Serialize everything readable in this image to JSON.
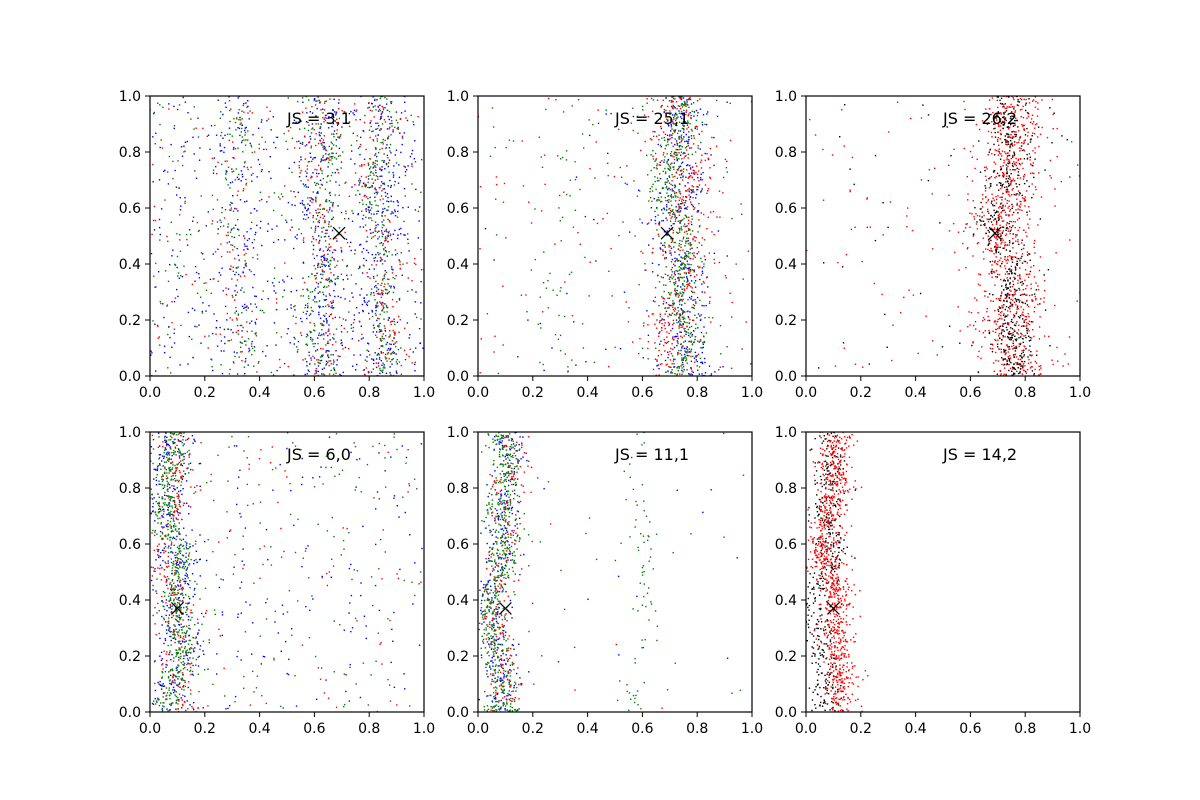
{
  "figure": {
    "background": "#ffffff",
    "colors": {
      "blue": "#0000ff",
      "red": "#ff0000",
      "green": "#007f00",
      "black": "#000000"
    }
  },
  "chart_data": [
    {
      "type": "scatter",
      "annotation": "JS = 3,1",
      "marker": {
        "x": 0.69,
        "y": 0.51,
        "symbol": "x"
      },
      "xlim": [
        0,
        1
      ],
      "ylim": [
        0,
        1
      ],
      "xticks": [
        "0.0",
        "0.2",
        "0.4",
        "0.6",
        "0.8",
        "1.0"
      ],
      "yticks": [
        "0.0",
        "0.2",
        "0.4",
        "0.6",
        "0.8",
        "1.0"
      ],
      "series": [
        {
          "color": "blue",
          "clusters": [
            {
              "center": 0.63,
              "width": 0.04,
              "n": 220
            },
            {
              "center": 0.84,
              "width": 0.04,
              "n": 240
            },
            {
              "center": 0.32,
              "width": 0.04,
              "n": 80
            }
          ],
          "background_n": 500
        },
        {
          "color": "red",
          "clusters": [
            {
              "center": 0.63,
              "width": 0.035,
              "n": 160
            },
            {
              "center": 0.84,
              "width": 0.035,
              "n": 170
            },
            {
              "center": 0.32,
              "width": 0.035,
              "n": 60
            }
          ],
          "background_n": 200
        },
        {
          "color": "green",
          "clusters": [
            {
              "center": 0.63,
              "width": 0.03,
              "n": 200
            },
            {
              "center": 0.84,
              "width": 0.03,
              "n": 210
            },
            {
              "center": 0.32,
              "width": 0.03,
              "n": 80
            }
          ],
          "background_n": 250
        }
      ]
    },
    {
      "type": "scatter",
      "annotation": "JS = 25,1",
      "marker": {
        "x": 0.69,
        "y": 0.51,
        "symbol": "x"
      },
      "xlim": [
        0,
        1
      ],
      "ylim": [
        0,
        1
      ],
      "xticks": [
        "0.0",
        "0.2",
        "0.4",
        "0.6",
        "0.8",
        "1.0"
      ],
      "yticks": [
        "0.0",
        "0.2",
        "0.4",
        "0.6",
        "0.8",
        "1.0"
      ],
      "series": [
        {
          "color": "blue",
          "clusters": [
            {
              "center": 0.74,
              "width": 0.05,
              "n": 420
            }
          ],
          "background_n": 40
        },
        {
          "color": "red",
          "clusters": [
            {
              "center": 0.74,
              "width": 0.055,
              "n": 480
            }
          ],
          "background_n": 110
        },
        {
          "color": "green",
          "clusters": [
            {
              "center": 0.73,
              "width": 0.04,
              "n": 520
            },
            {
              "center": 0.31,
              "width": 0.03,
              "n": 30
            }
          ],
          "background_n": 80
        }
      ]
    },
    {
      "type": "scatter",
      "annotation": "JS = 26,2",
      "marker": {
        "x": 0.69,
        "y": 0.51,
        "symbol": "x"
      },
      "xlim": [
        0,
        1
      ],
      "ylim": [
        0,
        1
      ],
      "xticks": [
        "0.0",
        "0.2",
        "0.4",
        "0.6",
        "0.8",
        "1.0"
      ],
      "yticks": [
        "0.0",
        "0.2",
        "0.4",
        "0.6",
        "0.8",
        "1.0"
      ],
      "series": [
        {
          "color": "red",
          "clusters": [
            {
              "center": 0.74,
              "width": 0.055,
              "n": 900
            }
          ],
          "background_n": 120
        },
        {
          "color": "black",
          "clusters": [
            {
              "center": 0.74,
              "width": 0.04,
              "n": 520
            }
          ],
          "background_n": 40
        }
      ]
    },
    {
      "type": "scatter",
      "annotation": "JS = 6,0",
      "marker": {
        "x": 0.1,
        "y": 0.37,
        "symbol": "x"
      },
      "xlim": [
        0,
        1
      ],
      "ylim": [
        0,
        1
      ],
      "xticks": [
        "0.0",
        "0.2",
        "0.4",
        "0.6",
        "0.8",
        "1.0"
      ],
      "yticks": [
        "0.0",
        "0.2",
        "0.4",
        "0.6",
        "0.8",
        "1.0"
      ],
      "series": [
        {
          "color": "blue",
          "clusters": [
            {
              "center": 0.09,
              "width": 0.04,
              "n": 380
            }
          ],
          "background_n": 170
        },
        {
          "color": "red",
          "clusters": [
            {
              "center": 0.09,
              "width": 0.035,
              "n": 260
            }
          ],
          "background_n": 110
        },
        {
          "color": "green",
          "clusters": [
            {
              "center": 0.09,
              "width": 0.03,
              "n": 560
            }
          ],
          "background_n": 140
        }
      ]
    },
    {
      "type": "scatter",
      "annotation": "JS = 11,1",
      "marker": {
        "x": 0.1,
        "y": 0.37,
        "symbol": "x"
      },
      "xlim": [
        0,
        1
      ],
      "ylim": [
        0,
        1
      ],
      "xticks": [
        "0.0",
        "0.2",
        "0.4",
        "0.6",
        "0.8",
        "1.0"
      ],
      "yticks": [
        "0.0",
        "0.2",
        "0.4",
        "0.6",
        "0.8",
        "1.0"
      ],
      "series": [
        {
          "color": "blue",
          "clusters": [
            {
              "center": 0.08,
              "width": 0.035,
              "n": 340
            }
          ],
          "background_n": 12
        },
        {
          "color": "red",
          "clusters": [
            {
              "center": 0.09,
              "width": 0.035,
              "n": 260
            }
          ],
          "background_n": 12
        },
        {
          "color": "green",
          "clusters": [
            {
              "center": 0.08,
              "width": 0.03,
              "n": 560
            },
            {
              "center": 0.6,
              "width": 0.025,
              "n": 70
            }
          ],
          "background_n": 25
        }
      ]
    },
    {
      "type": "scatter",
      "annotation": "JS = 14,2",
      "marker": {
        "x": 0.1,
        "y": 0.37,
        "symbol": "x"
      },
      "xlim": [
        0,
        1
      ],
      "ylim": [
        0,
        1
      ],
      "xticks": [
        "0.0",
        "0.2",
        "0.4",
        "0.6",
        "0.8",
        "1.0"
      ],
      "yticks": [
        "0.0",
        "0.2",
        "0.4",
        "0.6",
        "0.8",
        "1.0"
      ],
      "series": [
        {
          "color": "black",
          "clusters": [
            {
              "center": 0.07,
              "width": 0.03,
              "n": 420
            }
          ],
          "background_n": 0
        },
        {
          "color": "red",
          "clusters": [
            {
              "center": 0.1,
              "width": 0.03,
              "n": 900
            }
          ],
          "background_n": 0
        }
      ]
    }
  ]
}
